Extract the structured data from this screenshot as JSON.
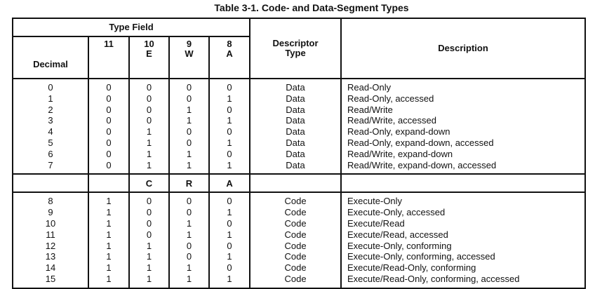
{
  "title": "Table 3-1.  Code- and Data-Segment Types",
  "header": {
    "type_field": "Type Field",
    "decimal": "Decimal",
    "bit11": "11",
    "bit10": "10",
    "bit10_name": "E",
    "bit9": "9",
    "bit9_name": "W",
    "bit8": "8",
    "bit8_name": "A",
    "descriptor_type_1": "Descriptor",
    "descriptor_type_2": "Type",
    "description": "Description"
  },
  "separator": {
    "bit10": "C",
    "bit9": "R",
    "bit8": "A"
  },
  "data_rows": [
    [
      "0",
      "0",
      "0",
      "0",
      "0",
      "Data",
      "Read-Only"
    ],
    [
      "1",
      "0",
      "0",
      "0",
      "1",
      "Data",
      "Read-Only, accessed"
    ],
    [
      "2",
      "0",
      "0",
      "1",
      "0",
      "Data",
      "Read/Write"
    ],
    [
      "3",
      "0",
      "0",
      "1",
      "1",
      "Data",
      "Read/Write, accessed"
    ],
    [
      "4",
      "0",
      "1",
      "0",
      "0",
      "Data",
      "Read-Only, expand-down"
    ],
    [
      "5",
      "0",
      "1",
      "0",
      "1",
      "Data",
      "Read-Only, expand-down, accessed"
    ],
    [
      "6",
      "0",
      "1",
      "1",
      "0",
      "Data",
      "Read/Write, expand-down"
    ],
    [
      "7",
      "0",
      "1",
      "1",
      "1",
      "Data",
      "Read/Write, expand-down, accessed"
    ]
  ],
  "code_rows": [
    [
      "8",
      "1",
      "0",
      "0",
      "0",
      "Code",
      "Execute-Only"
    ],
    [
      "9",
      "1",
      "0",
      "0",
      "1",
      "Code",
      "Execute-Only, accessed"
    ],
    [
      "10",
      "1",
      "0",
      "1",
      "0",
      "Code",
      "Execute/Read"
    ],
    [
      "11",
      "1",
      "0",
      "1",
      "1",
      "Code",
      "Execute/Read, accessed"
    ],
    [
      "12",
      "1",
      "1",
      "0",
      "0",
      "Code",
      "Execute-Only, conforming"
    ],
    [
      "13",
      "1",
      "1",
      "0",
      "1",
      "Code",
      "Execute-Only, conforming, accessed"
    ],
    [
      "14",
      "1",
      "1",
      "1",
      "0",
      "Code",
      "Execute/Read-Only, conforming"
    ],
    [
      "15",
      "1",
      "1",
      "1",
      "1",
      "Code",
      "Execute/Read-Only, conforming, accessed"
    ]
  ]
}
